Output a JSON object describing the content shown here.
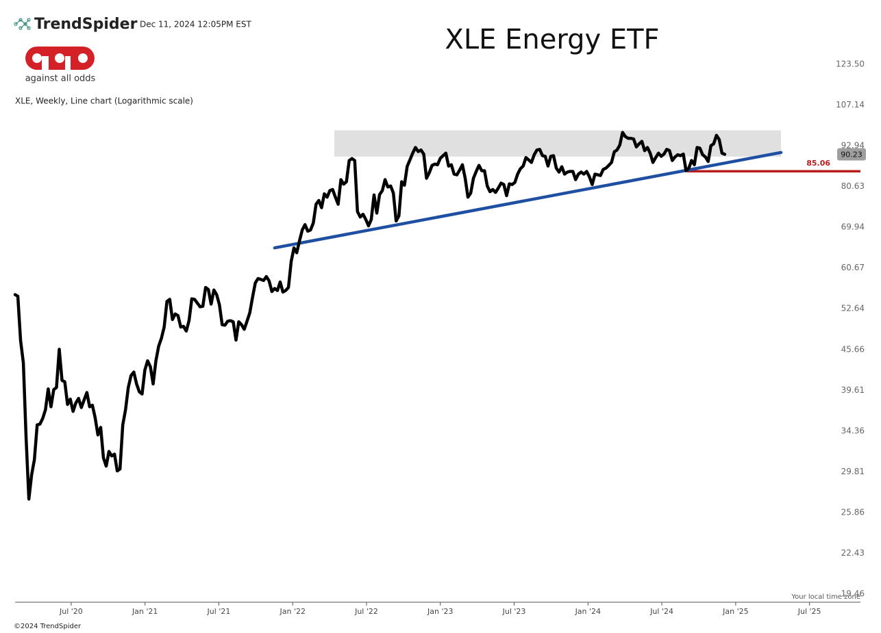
{
  "header": {
    "brand": "TrendSpider",
    "timestamp": "Dec 11, 2024 12:05PM EST",
    "tagline": "against all odds"
  },
  "footer": {
    "copyright": "©2024 TrendSpider",
    "timezone_note": "Your local time zone"
  },
  "chart_data": {
    "type": "line",
    "title": "XLE Energy ETF",
    "subtitle": "XLE, Weekly, Line chart (Logarithmic scale)",
    "log_scale": true,
    "grid": false,
    "color": "#000000",
    "xlim": [
      2020.12,
      2025.845
    ],
    "ylim": [
      18.91,
      140.5
    ],
    "xticks": [
      {
        "value": 2020.5,
        "label": "Jul '20"
      },
      {
        "value": 2021.0,
        "label": "Jan '21"
      },
      {
        "value": 2021.5,
        "label": "Jul '21"
      },
      {
        "value": 2022.0,
        "label": "Jan '22"
      },
      {
        "value": 2022.5,
        "label": "Jul '22"
      },
      {
        "value": 2023.0,
        "label": "Jan '23"
      },
      {
        "value": 2023.5,
        "label": "Jul '23"
      },
      {
        "value": 2024.0,
        "label": "Jan '24"
      },
      {
        "value": 2024.5,
        "label": "Jul '24"
      },
      {
        "value": 2025.0,
        "label": "Jan '25"
      },
      {
        "value": 2025.5,
        "label": "Jul '25"
      }
    ],
    "yticks": [
      {
        "value": 123.5,
        "label": "123.50"
      },
      107.14,
      92.94,
      80.63,
      69.94,
      60.67,
      52.64,
      45.66,
      39.61,
      34.36,
      29.81,
      25.86,
      22.43,
      19.46
    ],
    "zone": {
      "x": [
        2022.282,
        2025.307
      ],
      "y": [
        89.5,
        98.1
      ],
      "color": "#e0e0e0"
    },
    "trendline": {
      "x": [
        2021.878,
        2025.307
      ],
      "y": [
        65.1,
        90.8
      ],
      "color": "#1e4fa3"
    },
    "support": {
      "value": 85.06,
      "x_start": 2024.672,
      "color": "#b71c1c"
    },
    "x": [
      2020.12,
      2020.1387,
      2020.1574,
      2020.1761,
      2020.1948,
      2020.2135,
      2020.2322,
      2020.2509,
      2020.2696,
      2020.2883,
      2020.307,
      2020.3257,
      2020.3444,
      2020.3631,
      2020.3818,
      2020.4005,
      2020.4192,
      2020.4379,
      2020.4566,
      2020.4753,
      2020.494,
      2020.5127,
      2020.5314,
      2020.5501,
      2020.5688,
      2020.5875,
      2020.6062,
      2020.6249,
      2020.6436,
      2020.6623,
      2020.681,
      2020.6997,
      2020.7184,
      2020.7371,
      2020.7558,
      2020.7745,
      2020.7932,
      2020.8119,
      2020.8306,
      2020.8493,
      2020.868,
      2020.8867,
      2020.9054,
      2020.9241,
      2020.9428,
      2020.9615,
      2020.9802,
      2020.9989,
      2021.0176,
      2021.0363,
      2021.055,
      2021.0737,
      2021.0924,
      2021.1111,
      2021.1298,
      2021.1485,
      2021.1672,
      2021.1859,
      2021.2046,
      2021.2233,
      2021.242,
      2021.2607,
      2021.2794,
      2021.2981,
      2021.3168,
      2021.3355,
      2021.3542,
      2021.3729,
      2021.3916,
      2021.4103,
      2021.429,
      2021.4477,
      2021.4664,
      2021.4851,
      2021.5038,
      2021.5225,
      2021.5412,
      2021.5599,
      2021.5786,
      2021.5973,
      2021.616,
      2021.6347,
      2021.6534,
      2021.6721,
      2021.6908,
      2021.7095,
      2021.7282,
      2021.7469,
      2021.7656,
      2021.7843,
      2021.803,
      2021.8217,
      2021.8404,
      2021.8591,
      2021.8778,
      2021.8965,
      2021.9152,
      2021.9339,
      2021.9526,
      2021.9713,
      2021.99,
      2022.0087,
      2022.0274,
      2022.0461,
      2022.0648,
      2022.0835,
      2022.1022,
      2022.1209,
      2022.1396,
      2022.1583,
      2022.177,
      2022.1957,
      2022.2144,
      2022.2331,
      2022.2518,
      2022.2705,
      2022.2892,
      2022.3079,
      2022.3266,
      2022.3453,
      2022.364,
      2022.3827,
      2022.4014,
      2022.4201,
      2022.4388,
      2022.4575,
      2022.4762,
      2022.4949,
      2022.5136,
      2022.5323,
      2022.551,
      2022.5697,
      2022.5884,
      2022.6071,
      2022.6258,
      2022.6445,
      2022.6632,
      2022.6819,
      2022.7006,
      2022.7193,
      2022.738,
      2022.7567,
      2022.7754,
      2022.7941,
      2022.8128,
      2022.8315,
      2022.8502,
      2022.8689,
      2022.8876,
      2022.9063,
      2022.925,
      2022.9437,
      2022.9624,
      2022.9811,
      2022.9998,
      2023.0185,
      2023.0372,
      2023.0559,
      2023.0746,
      2023.0933,
      2023.112,
      2023.1307,
      2023.1494,
      2023.1681,
      2023.1868,
      2023.2055,
      2023.2242,
      2023.2429,
      2023.2616,
      2023.2803,
      2023.299,
      2023.3177,
      2023.3364,
      2023.3551,
      2023.3738,
      2023.3925,
      2023.4112,
      2023.4299,
      2023.4486,
      2023.4673,
      2023.486,
      2023.5047,
      2023.5234,
      2023.5421,
      2023.5608,
      2023.5795,
      2023.5982,
      2023.6169,
      2023.6356,
      2023.6543,
      2023.673,
      2023.6917,
      2023.7104,
      2023.7291,
      2023.7478,
      2023.7665,
      2023.7852,
      2023.8039,
      2023.8226,
      2023.8413,
      2023.86,
      2023.8787,
      2023.8974,
      2023.9161,
      2023.9348,
      2023.9535,
      2023.9722,
      2023.9909,
      2024.0096,
      2024.0283,
      2024.047,
      2024.0657,
      2024.0844,
      2024.1031,
      2024.1218,
      2024.1405,
      2024.1592,
      2024.1779,
      2024.1966,
      2024.2153,
      2024.234,
      2024.2527,
      2024.2714,
      2024.2901,
      2024.3088,
      2024.3275,
      2024.3462,
      2024.3649,
      2024.3836,
      2024.4023,
      2024.421,
      2024.4397,
      2024.4584,
      2024.4771,
      2024.4958,
      2024.5145,
      2024.5332,
      2024.5519,
      2024.5706,
      2024.5893,
      2024.608,
      2024.6267,
      2024.6454,
      2024.6641,
      2024.6828,
      2024.7015,
      2024.7202,
      2024.7389,
      2024.7576,
      2024.7763,
      2024.795,
      2024.8137,
      2024.8324,
      2024.8511,
      2024.8698,
      2024.8885,
      2024.9072,
      2024.9259
    ],
    "values": [
      55.3,
      55.0,
      47.1,
      43.6,
      33.5,
      27.1,
      29.5,
      31.1,
      35.1,
      35.2,
      35.9,
      37.0,
      39.8,
      37.4,
      39.7,
      40.0,
      45.7,
      41.0,
      40.8,
      37.7,
      38.4,
      36.8,
      37.9,
      38.5,
      37.3,
      38.3,
      39.3,
      37.4,
      37.6,
      36.0,
      33.9,
      34.8,
      31.3,
      30.4,
      32.0,
      31.5,
      31.7,
      29.9,
      30.1,
      35.1,
      37.0,
      40.0,
      41.7,
      42.2,
      40.5,
      39.4,
      39.1,
      42.5,
      43.9,
      43.0,
      40.5,
      43.9,
      46.2,
      47.5,
      49.4,
      54.0,
      54.4,
      50.7,
      51.7,
      51.4,
      49.4,
      49.5,
      48.7,
      50.5,
      54.5,
      54.4,
      53.7,
      53.0,
      53.1,
      56.7,
      56.3,
      53.5,
      56.2,
      55.3,
      53.4,
      49.8,
      49.7,
      50.4,
      50.5,
      50.3,
      47.2,
      50.3,
      49.8,
      49.0,
      50.4,
      51.9,
      54.8,
      57.6,
      58.5,
      58.3,
      58.1,
      58.9,
      58.0,
      55.9,
      56.5,
      56.1,
      57.8,
      55.8,
      56.1,
      56.7,
      62.1,
      65.1,
      64.0,
      66.7,
      69.3,
      70.6,
      69.0,
      69.3,
      71.0,
      75.8,
      76.8,
      74.9,
      78.6,
      77.7,
      79.5,
      79.8,
      77.7,
      75.8,
      82.6,
      81.3,
      82.0,
      88.3,
      88.9,
      88.3,
      73.9,
      72.5,
      73.2,
      71.9,
      70.3,
      71.9,
      78.3,
      73.5,
      78.4,
      79.5,
      82.6,
      80.5,
      80.8,
      78.8,
      71.5,
      72.8,
      82.0,
      81.0,
      86.5,
      88.5,
      90.6,
      92.4,
      91.1,
      91.6,
      90.3,
      83.0,
      84.6,
      86.8,
      87.2,
      87.0,
      89.0,
      89.8,
      90.6,
      86.6,
      87.0,
      84.2,
      84.0,
      85.4,
      87.0,
      83.0,
      77.7,
      78.8,
      83.0,
      85.0,
      86.8,
      85.2,
      85.2,
      80.8,
      79.2,
      79.8,
      79.0,
      80.2,
      81.6,
      81.2,
      78.1,
      81.4,
      81.2,
      81.8,
      84.2,
      85.8,
      86.6,
      89.2,
      88.5,
      87.7,
      90.1,
      91.6,
      91.8,
      89.8,
      89.6,
      86.6,
      89.6,
      89.8,
      86.0,
      84.8,
      86.4,
      84.2,
      84.8,
      85.0,
      85.0,
      82.6,
      84.2,
      84.8,
      84.2,
      85.0,
      83.4,
      81.2,
      84.2,
      84.0,
      83.8,
      85.6,
      86.0,
      86.8,
      87.7,
      91.0,
      91.6,
      93.2,
      97.4,
      96.0,
      95.4,
      95.4,
      95.2,
      92.6,
      93.6,
      94.4,
      91.4,
      92.4,
      90.6,
      87.7,
      89.2,
      90.6,
      89.6,
      90.3,
      91.8,
      91.4,
      88.3,
      89.4,
      90.1,
      89.8,
      90.3,
      85.2,
      86.0,
      88.3,
      87.0,
      92.4,
      92.2,
      90.1,
      89.4,
      88.0,
      93.0,
      93.6,
      96.4,
      95.0,
      90.6,
      90.23
    ]
  }
}
